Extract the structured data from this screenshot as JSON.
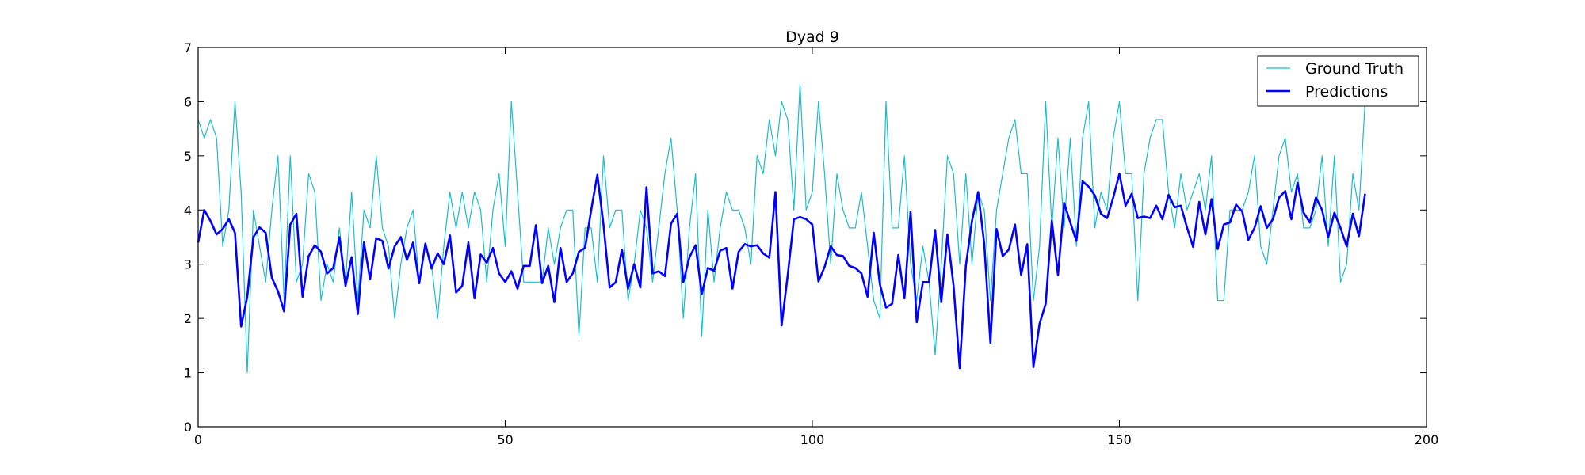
{
  "chart_data": {
    "type": "line",
    "title": "Dyad 9",
    "xlabel": "",
    "ylabel": "",
    "xlim": [
      0,
      200
    ],
    "ylim": [
      0,
      7
    ],
    "xticks": [
      0,
      50,
      100,
      150,
      200
    ],
    "yticks": [
      0,
      1,
      2,
      3,
      4,
      5,
      6,
      7
    ],
    "grid": false,
    "legend_position": "top-right",
    "series": [
      {
        "name": "Ground Truth",
        "color": "#17becf",
        "line_width": "thin",
        "values": [
          5.67,
          5.33,
          5.67,
          5.33,
          3.33,
          4.0,
          6.0,
          4.33,
          1.0,
          4.0,
          3.33,
          2.67,
          4.0,
          5.0,
          2.33,
          5.0,
          2.67,
          3.0,
          4.67,
          4.33,
          2.33,
          3.0,
          2.67,
          3.67,
          2.67,
          4.33,
          2.33,
          4.0,
          3.67,
          5.0,
          3.67,
          3.33,
          2.0,
          3.0,
          3.67,
          4.0,
          2.67,
          3.33,
          3.0,
          2.0,
          3.33,
          4.33,
          3.67,
          4.33,
          3.67,
          4.33,
          4.0,
          2.67,
          4.0,
          4.67,
          3.33,
          6.0,
          4.33,
          2.67,
          2.67,
          2.67,
          2.67,
          3.67,
          3.0,
          3.67,
          4.0,
          4.0,
          1.67,
          3.67,
          3.67,
          2.67,
          5.0,
          3.67,
          4.0,
          4.0,
          2.33,
          3.0,
          4.0,
          3.67,
          2.67,
          3.67,
          4.67,
          5.33,
          4.0,
          2.0,
          3.67,
          4.67,
          1.67,
          4.0,
          2.67,
          3.67,
          4.33,
          4.0,
          4.0,
          3.67,
          3.0,
          5.0,
          4.67,
          5.67,
          5.0,
          6.0,
          5.67,
          4.0,
          6.33,
          4.0,
          4.33,
          6.0,
          4.67,
          3.0,
          4.67,
          4.0,
          3.67,
          3.67,
          4.33,
          3.33,
          2.33,
          2.0,
          6.0,
          3.67,
          3.67,
          5.0,
          3.0,
          2.33,
          3.33,
          2.67,
          1.33,
          3.0,
          5.0,
          4.67,
          3.0,
          4.67,
          3.0,
          4.33,
          4.0,
          2.33,
          4.0,
          4.67,
          5.33,
          5.67,
          4.67,
          4.67,
          2.33,
          3.33,
          6.0,
          3.67,
          5.33,
          3.67,
          5.33,
          3.33,
          5.33,
          6.0,
          3.67,
          4.33,
          4.0,
          5.33,
          6.0,
          4.67,
          4.67,
          2.33,
          4.67,
          5.33,
          5.67,
          5.67,
          4.33,
          3.67,
          4.67,
          4.0,
          4.33,
          4.67,
          4.0,
          5.0,
          2.33,
          2.33,
          4.0,
          4.0,
          4.0,
          4.33,
          5.0,
          3.33,
          3.0,
          4.0,
          5.0,
          5.33,
          4.33,
          4.67,
          3.67,
          3.67,
          4.0,
          5.0,
          3.33,
          5.0,
          2.67,
          3.0,
          4.67,
          4.0,
          6.0
        ]
      },
      {
        "name": "Predictions",
        "color": "#0000ff",
        "line_width": "thick",
        "values": [
          3.4,
          4.0,
          3.8,
          3.55,
          3.65,
          3.83,
          3.58,
          1.85,
          2.4,
          3.5,
          3.68,
          3.58,
          2.75,
          2.5,
          2.13,
          3.73,
          3.93,
          2.4,
          3.15,
          3.35,
          3.23,
          2.83,
          2.93,
          3.5,
          2.6,
          3.13,
          2.08,
          3.4,
          2.72,
          3.48,
          3.43,
          2.92,
          3.33,
          3.5,
          3.08,
          3.4,
          2.65,
          3.38,
          2.92,
          3.2,
          3.0,
          3.53,
          2.48,
          2.6,
          3.4,
          2.37,
          3.18,
          3.03,
          3.3,
          2.83,
          2.67,
          2.87,
          2.55,
          2.97,
          2.97,
          3.72,
          2.65,
          2.97,
          2.3,
          3.3,
          2.67,
          2.83,
          3.23,
          3.3,
          4.0,
          4.65,
          3.73,
          2.57,
          2.67,
          3.27,
          2.55,
          3.0,
          2.57,
          4.42,
          2.83,
          2.87,
          2.78,
          3.75,
          3.93,
          2.67,
          3.13,
          3.35,
          2.45,
          2.93,
          2.88,
          3.25,
          3.3,
          2.55,
          3.23,
          3.37,
          3.33,
          3.35,
          3.2,
          3.12,
          4.33,
          1.87,
          2.8,
          3.83,
          3.87,
          3.83,
          3.73,
          2.68,
          2.95,
          3.33,
          3.17,
          3.15,
          2.97,
          2.93,
          2.83,
          2.4,
          3.58,
          2.63,
          2.2,
          2.27,
          3.17,
          2.37,
          3.97,
          1.93,
          2.67,
          2.67,
          3.63,
          2.3,
          3.55,
          2.6,
          1.08,
          2.97,
          3.8,
          4.33,
          3.37,
          1.55,
          3.65,
          3.15,
          3.27,
          3.73,
          2.8,
          3.37,
          1.1,
          1.9,
          2.27,
          3.8,
          2.8,
          4.13,
          3.77,
          3.43,
          4.53,
          4.43,
          4.27,
          3.93,
          3.85,
          4.23,
          4.67,
          4.08,
          4.3,
          3.85,
          3.88,
          3.85,
          4.08,
          3.83,
          4.28,
          4.05,
          4.08,
          3.68,
          3.32,
          4.15,
          3.55,
          4.2,
          3.28,
          3.73,
          3.77,
          4.1,
          3.97,
          3.45,
          3.67,
          4.07,
          3.67,
          3.83,
          4.23,
          4.35,
          3.83,
          4.5,
          3.95,
          3.77,
          4.23,
          4.0,
          3.5,
          3.95,
          3.67,
          3.33,
          3.93,
          3.52,
          4.3
        ]
      }
    ]
  }
}
